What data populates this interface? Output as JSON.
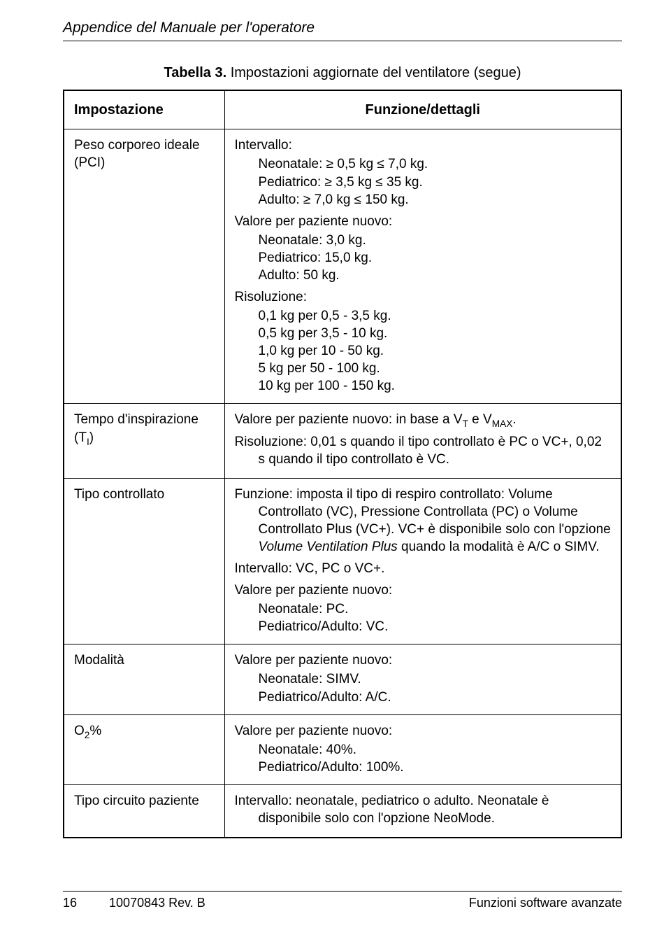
{
  "header": {
    "title": "Appendice del Manuale per l'operatore"
  },
  "caption": {
    "prefix": "Tabella 3.",
    "text": "Impostazioni aggiornate del ventilatore (segue)"
  },
  "columns": {
    "left": "Impostazione",
    "right": "Funzione/dettagli"
  },
  "rows": {
    "pci": {
      "label": "Peso corporeo ideale (PCI)",
      "intervallo_label": "Intervallo:",
      "intervallo_lines": [
        "Neonatale: ≥ 0,5 kg ≤ 7,0 kg.",
        "Pediatrico: ≥ 3,5 kg ≤ 35 kg.",
        "Adulto: ≥ 7,0 kg ≤ 150 kg."
      ],
      "valore_label": "Valore per paziente nuovo:",
      "valore_lines": [
        "Neonatale: 3,0 kg.",
        "Pediatrico: 15,0 kg.",
        "Adulto: 50 kg."
      ],
      "risoluzione_label": "Risoluzione:",
      "risoluzione_lines": [
        "0,1 kg per 0,5 - 3,5 kg.",
        "0,5 kg per 3,5 - 10 kg.",
        "1,0 kg per 10 - 50 kg.",
        "5 kg per 50 - 100 kg.",
        "10 kg per 100 - 150 kg."
      ]
    },
    "tempo": {
      "label_pre": "Tempo d'inspirazione (T",
      "label_sub": "I",
      "label_post": ")",
      "line1_pre": "Valore per paziente nuovo: in base a V",
      "line1_sub1": "T",
      "line1_mid": " e V",
      "line1_sub2": "MAX",
      "line1_post": ".",
      "line2": "Risoluzione: 0,01 s quando il tipo controllato è PC o VC+, 0,02 s quando il tipo controllato è VC."
    },
    "tipo_controllato": {
      "label": "Tipo controllato",
      "funzione_pre": "Funzione: imposta il tipo di respiro controllato: Volume Controllato (VC), Pressione Controllata (PC) o Volume Controllato Plus (VC+). VC+ è disponibile solo con l'opzione ",
      "funzione_italic": "Volume Ventilation Plus",
      "funzione_post": " quando la modalità è A/C o SIMV.",
      "intervallo": "Intervallo: VC, PC o VC+.",
      "valore_label": "Valore per paziente nuovo:",
      "valore_lines": [
        "Neonatale: PC.",
        "Pediatrico/Adulto: VC."
      ]
    },
    "modalita": {
      "label": "Modalità",
      "valore_label": "Valore per paziente nuovo:",
      "valore_lines": [
        "Neonatale: SIMV.",
        "Pediatrico/Adulto: A/C."
      ]
    },
    "o2": {
      "label_pre": "O",
      "label_sub": "2",
      "label_post": "%",
      "valore_label": "Valore per paziente nuovo:",
      "valore_lines": [
        "Neonatale: 40%.",
        "Pediatrico/Adulto: 100%."
      ]
    },
    "circuito": {
      "label": "Tipo circuito paziente",
      "text": "Intervallo: neonatale, pediatrico o adulto. Neonatale è disponibile solo con l'opzione NeoMode."
    }
  },
  "footer": {
    "page": "16",
    "docid": "10070843 Rev. B",
    "section": "Funzioni software avanzate"
  }
}
